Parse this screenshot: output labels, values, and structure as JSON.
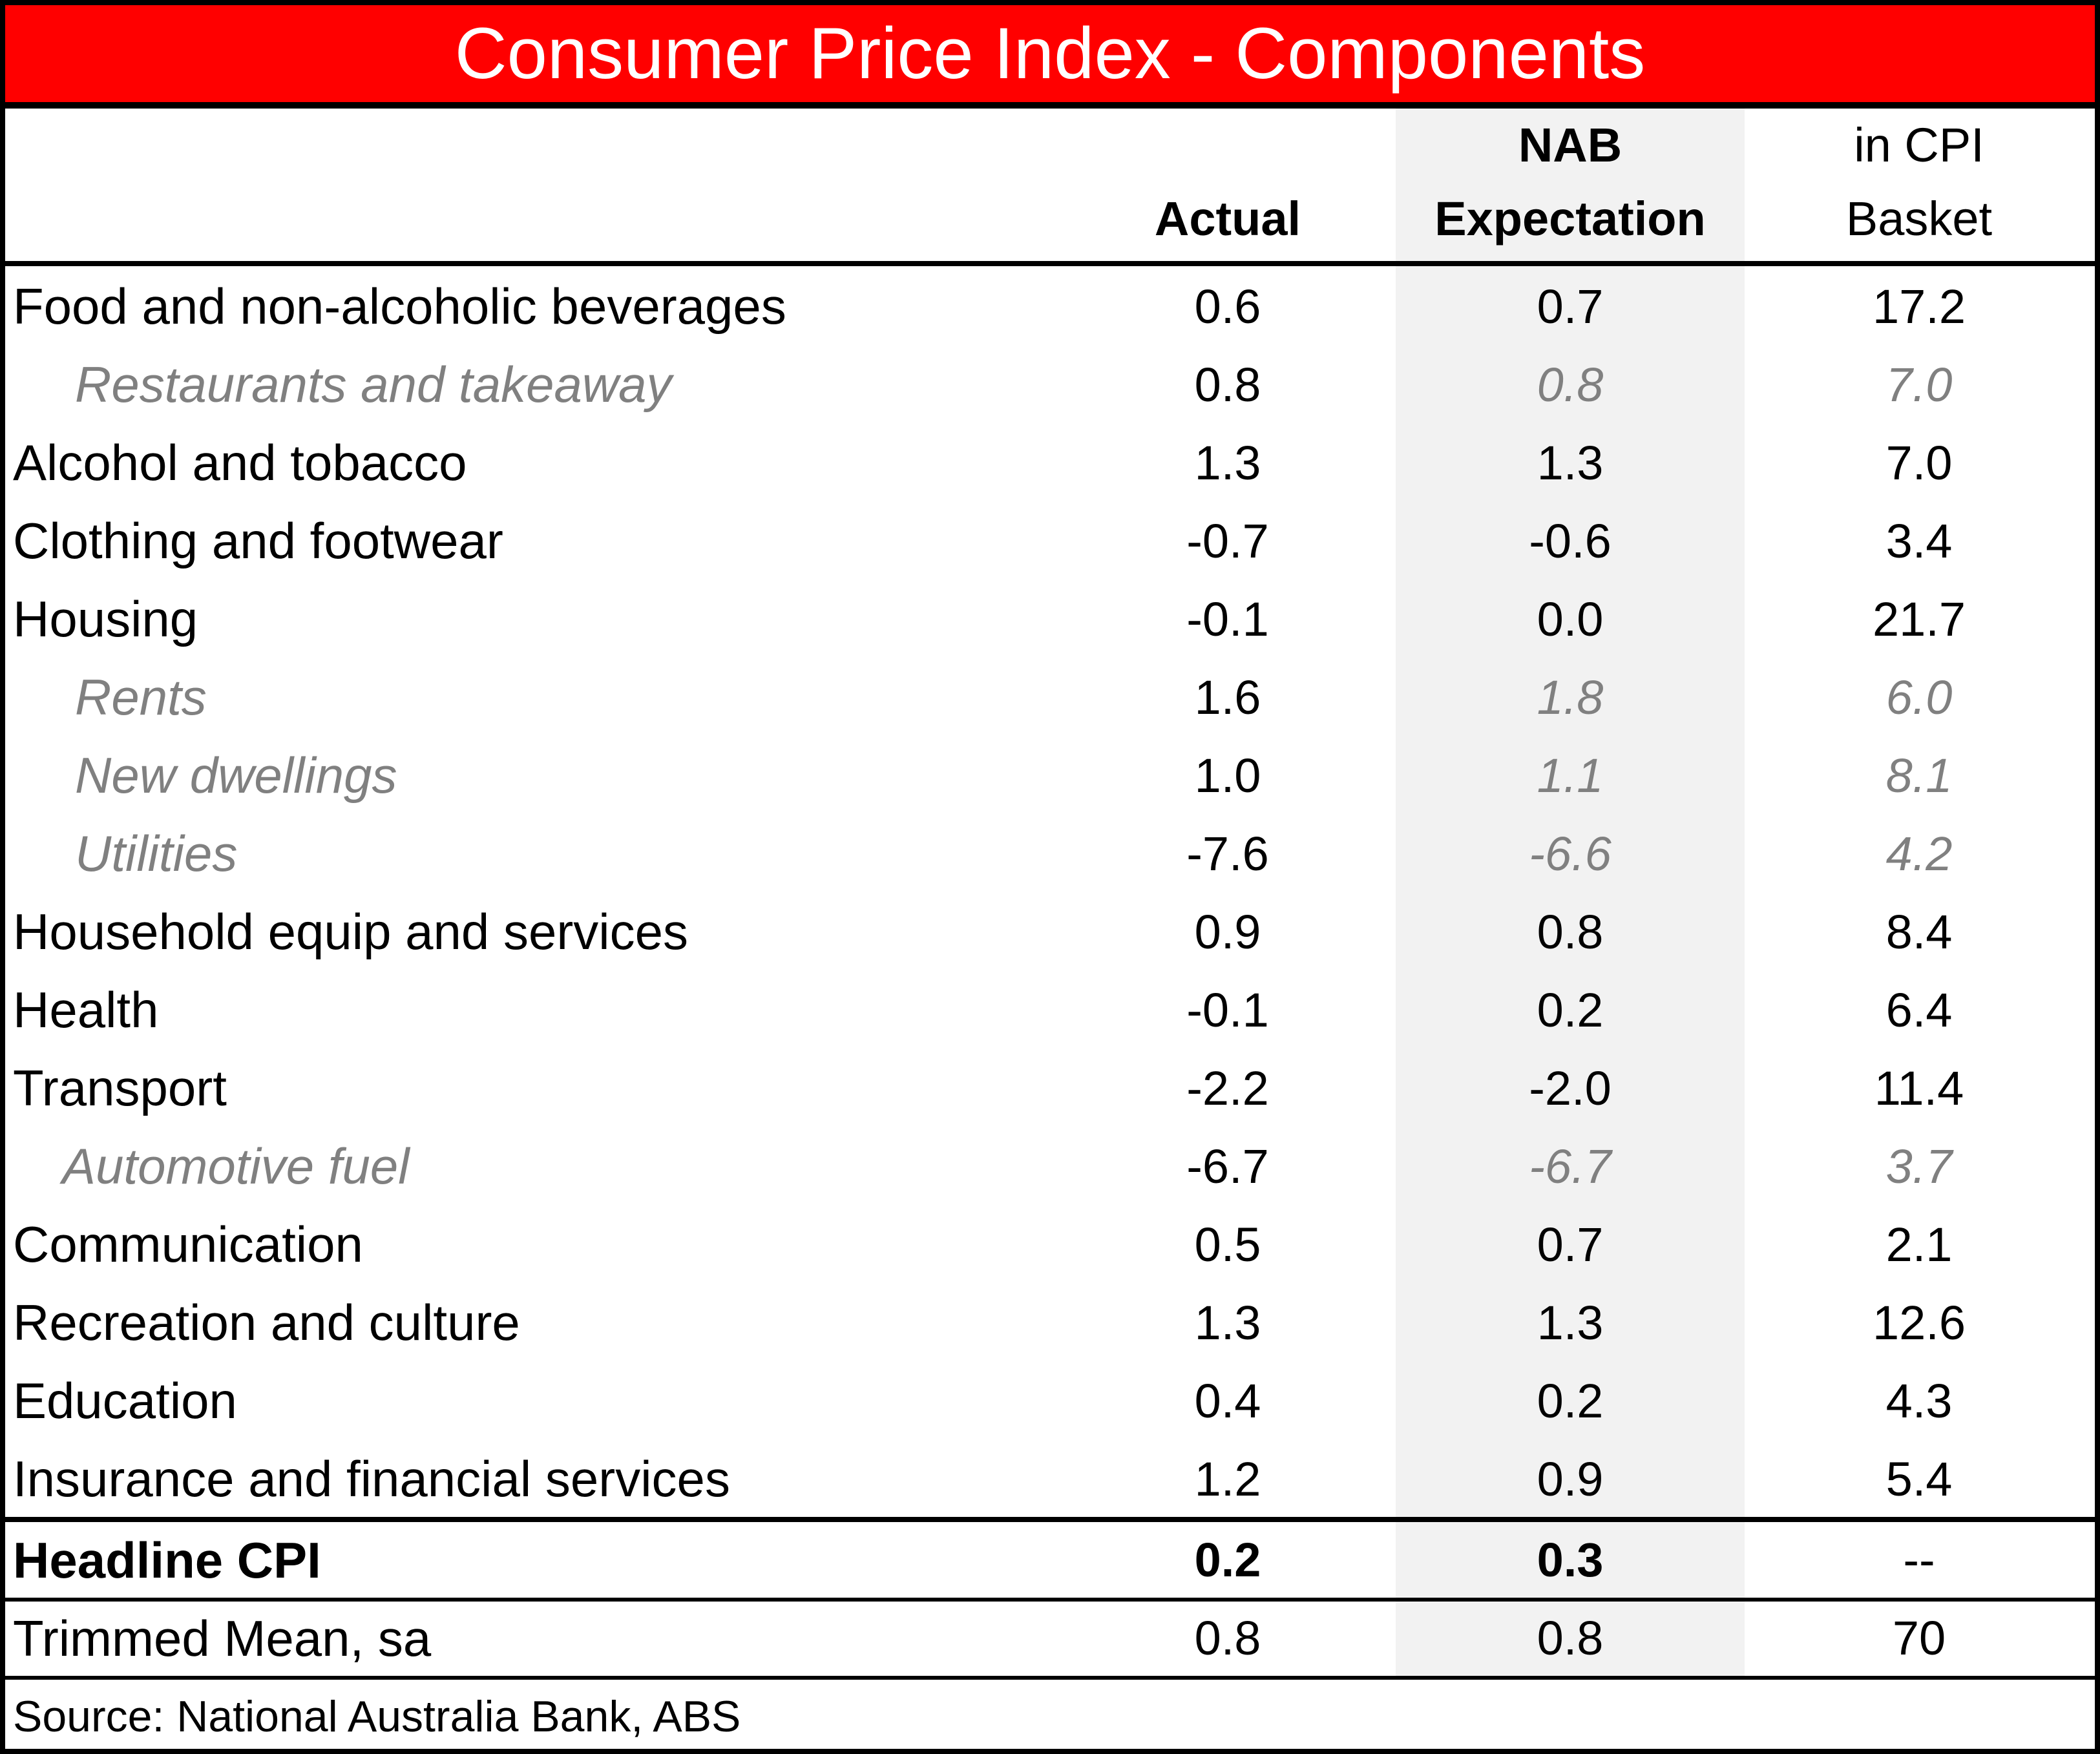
{
  "chart_data": {
    "type": "table",
    "title": "Consumer Price Index - Components",
    "columns": [
      {
        "line1": "",
        "line2": "Actual"
      },
      {
        "line1": "NAB",
        "line2": "Expectation"
      },
      {
        "line1": "in CPI",
        "line2": "Basket"
      }
    ],
    "rows": [
      {
        "label": "Food and non-alcoholic beverages",
        "actual": "0.6",
        "expectation": "0.7",
        "basket": "17.2",
        "sub": false
      },
      {
        "label": "Restaurants and takeaway",
        "actual": "0.8",
        "expectation": "0.8",
        "basket": "7.0",
        "sub": true
      },
      {
        "label": "Alcohol and tobacco",
        "actual": "1.3",
        "expectation": "1.3",
        "basket": "7.0",
        "sub": false
      },
      {
        "label": "Clothing and footwear",
        "actual": "-0.7",
        "expectation": "-0.6",
        "basket": "3.4",
        "sub": false
      },
      {
        "label": "Housing",
        "actual": "-0.1",
        "expectation": "0.0",
        "basket": "21.7",
        "sub": false
      },
      {
        "label": "Rents",
        "actual": "1.6",
        "expectation": "1.8",
        "basket": "6.0",
        "sub": true
      },
      {
        "label": "New dwellings",
        "actual": "1.0",
        "expectation": "1.1",
        "basket": "8.1",
        "sub": true
      },
      {
        "label": "Utilities",
        "actual": "-7.6",
        "expectation": "-6.6",
        "basket": "4.2",
        "sub": true
      },
      {
        "label": "Household equip and services",
        "actual": "0.9",
        "expectation": "0.8",
        "basket": "8.4",
        "sub": false
      },
      {
        "label": "Health",
        "actual": "-0.1",
        "expectation": "0.2",
        "basket": "6.4",
        "sub": false
      },
      {
        "label": "Transport",
        "actual": "-2.2",
        "expectation": "-2.0",
        "basket": "11.4",
        "sub": false
      },
      {
        "label": "Automotive fuel",
        "actual": "-6.7",
        "expectation": "-6.7",
        "basket": "3.7",
        "sub": true
      },
      {
        "label": "Communication",
        "actual": "0.5",
        "expectation": "0.7",
        "basket": "2.1",
        "sub": false
      },
      {
        "label": "Recreation and culture",
        "actual": "1.3",
        "expectation": "1.3",
        "basket": "12.6",
        "sub": false
      },
      {
        "label": "Education",
        "actual": "0.4",
        "expectation": "0.2",
        "basket": "4.3",
        "sub": false
      },
      {
        "label": "Insurance and financial services",
        "actual": "1.2",
        "expectation": "0.9",
        "basket": "5.4",
        "sub": false
      }
    ],
    "headline": {
      "label": "Headline CPI",
      "actual": "0.2",
      "expectation": "0.3",
      "basket": "--"
    },
    "trimmed": {
      "label": "Trimmed Mean, sa",
      "actual": "0.8",
      "expectation": "0.8",
      "basket": "70"
    },
    "source": "Source: National Australia Bank, ABS"
  },
  "colors": {
    "title_background": "#ff0000",
    "title_text": "#ffffff",
    "expectation_column_shade": "#f2f2f2",
    "sub_item_text": "#808080"
  }
}
